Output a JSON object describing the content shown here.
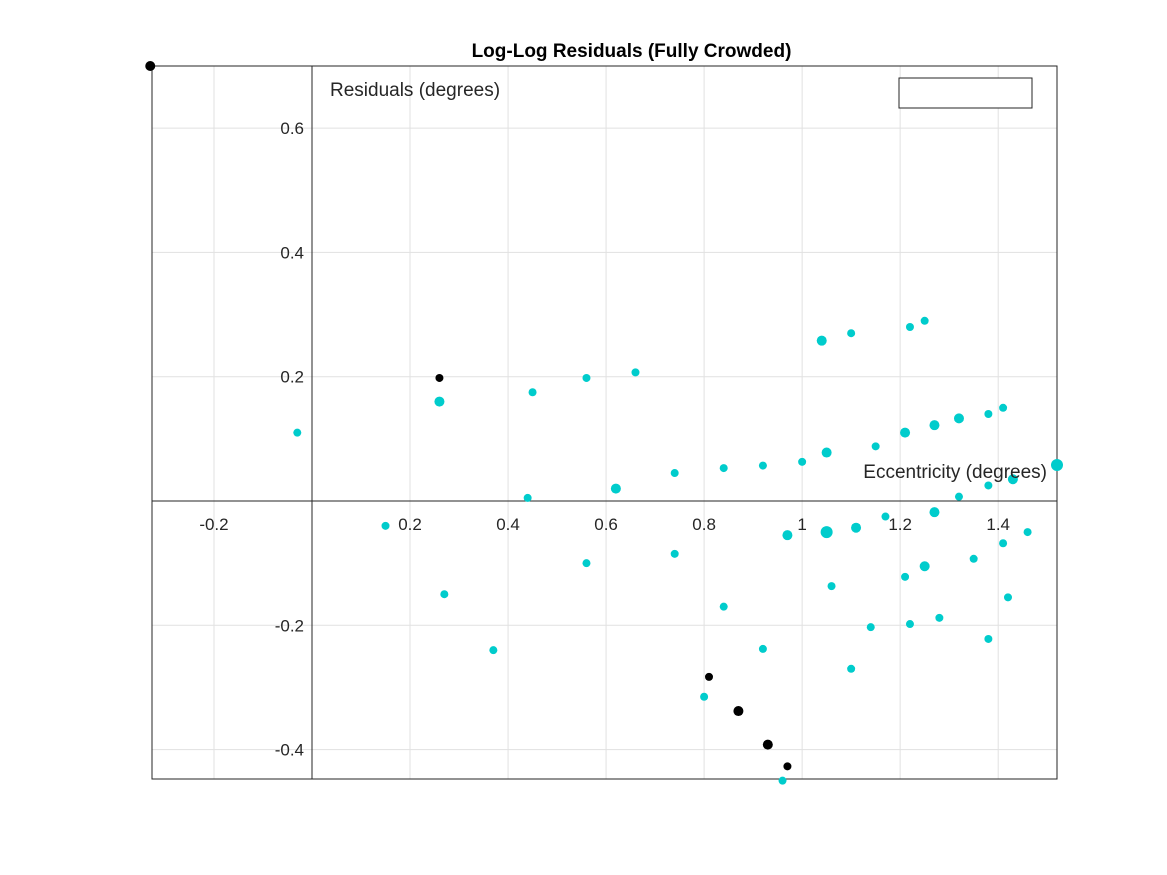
{
  "chart_data": {
    "type": "scatter",
    "title": "Log-Log Residuals (Fully Crowded)",
    "xlabel": "Eccentricity (degrees)",
    "ylabel": "Residuals (degrees)",
    "xlim": [
      -0.33,
      1.52
    ],
    "ylim": [
      -0.45,
      0.7
    ],
    "x_ticks": [
      -0.2,
      0.2,
      0.4,
      0.6,
      0.8,
      1,
      1.2,
      1.4
    ],
    "x_tick_labels": [
      "-0.2",
      "0.2",
      "0.4",
      "0.6",
      "0.8",
      "1",
      "1.2",
      "1.4"
    ],
    "y_ticks": [
      -0.4,
      -0.2,
      0.2,
      0.4,
      0.6
    ],
    "y_tick_labels": [
      "-0.4",
      "-0.2",
      "0.2",
      "0.4",
      "0.6"
    ],
    "grid": true,
    "legend": {
      "position": "top-right",
      "entries": []
    },
    "colors": {
      "primary": "#00CCCC",
      "highlight": "#000000"
    },
    "series": [
      {
        "color": "#00CCCC",
        "points": [
          {
            "x": -0.03,
            "y": 0.11,
            "size": 4
          },
          {
            "x": 0.15,
            "y": -0.04,
            "size": 4
          },
          {
            "x": 0.26,
            "y": 0.16,
            "size": 5
          },
          {
            "x": 0.27,
            "y": -0.15,
            "size": 4
          },
          {
            "x": 0.37,
            "y": -0.24,
            "size": 4
          },
          {
            "x": 0.44,
            "y": 0.005,
            "size": 4
          },
          {
            "x": 0.45,
            "y": 0.175,
            "size": 4
          },
          {
            "x": 0.56,
            "y": 0.198,
            "size": 4
          },
          {
            "x": 0.56,
            "y": -0.1,
            "size": 4
          },
          {
            "x": 0.62,
            "y": 0.02,
            "size": 5
          },
          {
            "x": 0.66,
            "y": 0.207,
            "size": 4
          },
          {
            "x": 0.74,
            "y": 0.045,
            "size": 4
          },
          {
            "x": 0.74,
            "y": -0.085,
            "size": 4
          },
          {
            "x": 0.8,
            "y": -0.315,
            "size": 4
          },
          {
            "x": 0.84,
            "y": 0.053,
            "size": 4
          },
          {
            "x": 0.84,
            "y": -0.17,
            "size": 4
          },
          {
            "x": 0.92,
            "y": 0.057,
            "size": 4
          },
          {
            "x": 0.92,
            "y": -0.238,
            "size": 4
          },
          {
            "x": 0.96,
            "y": -0.45,
            "size": 4
          },
          {
            "x": 0.97,
            "y": -0.055,
            "size": 5
          },
          {
            "x": 1.0,
            "y": 0.063,
            "size": 4
          },
          {
            "x": 1.04,
            "y": 0.258,
            "size": 5
          },
          {
            "x": 1.05,
            "y": 0.078,
            "size": 5
          },
          {
            "x": 1.05,
            "y": -0.05,
            "size": 6
          },
          {
            "x": 1.06,
            "y": -0.137,
            "size": 4
          },
          {
            "x": 1.1,
            "y": 0.27,
            "size": 4
          },
          {
            "x": 1.1,
            "y": -0.27,
            "size": 4
          },
          {
            "x": 1.11,
            "y": -0.043,
            "size": 5
          },
          {
            "x": 1.14,
            "y": -0.203,
            "size": 4
          },
          {
            "x": 1.15,
            "y": 0.088,
            "size": 4
          },
          {
            "x": 1.17,
            "y": -0.025,
            "size": 4
          },
          {
            "x": 1.21,
            "y": 0.11,
            "size": 5
          },
          {
            "x": 1.21,
            "y": -0.122,
            "size": 4
          },
          {
            "x": 1.22,
            "y": 0.28,
            "size": 4
          },
          {
            "x": 1.22,
            "y": -0.198,
            "size": 4
          },
          {
            "x": 1.25,
            "y": 0.29,
            "size": 4
          },
          {
            "x": 1.25,
            "y": -0.105,
            "size": 5
          },
          {
            "x": 1.27,
            "y": 0.122,
            "size": 5
          },
          {
            "x": 1.27,
            "y": -0.018,
            "size": 5
          },
          {
            "x": 1.28,
            "y": -0.188,
            "size": 4
          },
          {
            "x": 1.32,
            "y": 0.133,
            "size": 5
          },
          {
            "x": 1.32,
            "y": 0.007,
            "size": 4
          },
          {
            "x": 1.35,
            "y": -0.093,
            "size": 4
          },
          {
            "x": 1.38,
            "y": 0.14,
            "size": 4
          },
          {
            "x": 1.38,
            "y": 0.025,
            "size": 4
          },
          {
            "x": 1.38,
            "y": -0.222,
            "size": 4
          },
          {
            "x": 1.41,
            "y": 0.15,
            "size": 4
          },
          {
            "x": 1.41,
            "y": -0.068,
            "size": 4
          },
          {
            "x": 1.42,
            "y": -0.155,
            "size": 4
          },
          {
            "x": 1.43,
            "y": 0.035,
            "size": 5
          },
          {
            "x": 1.46,
            "y": -0.05,
            "size": 4
          },
          {
            "x": 1.52,
            "y": 0.058,
            "size": 6
          }
        ]
      },
      {
        "color": "#000000",
        "points": [
          {
            "x": -0.33,
            "y": 0.7,
            "size": 5
          },
          {
            "x": 0.26,
            "y": 0.198,
            "size": 4
          },
          {
            "x": 0.81,
            "y": -0.283,
            "size": 4
          },
          {
            "x": 0.87,
            "y": -0.338,
            "size": 5
          },
          {
            "x": 0.93,
            "y": -0.392,
            "size": 5
          },
          {
            "x": 0.97,
            "y": -0.427,
            "size": 4
          }
        ]
      }
    ]
  }
}
